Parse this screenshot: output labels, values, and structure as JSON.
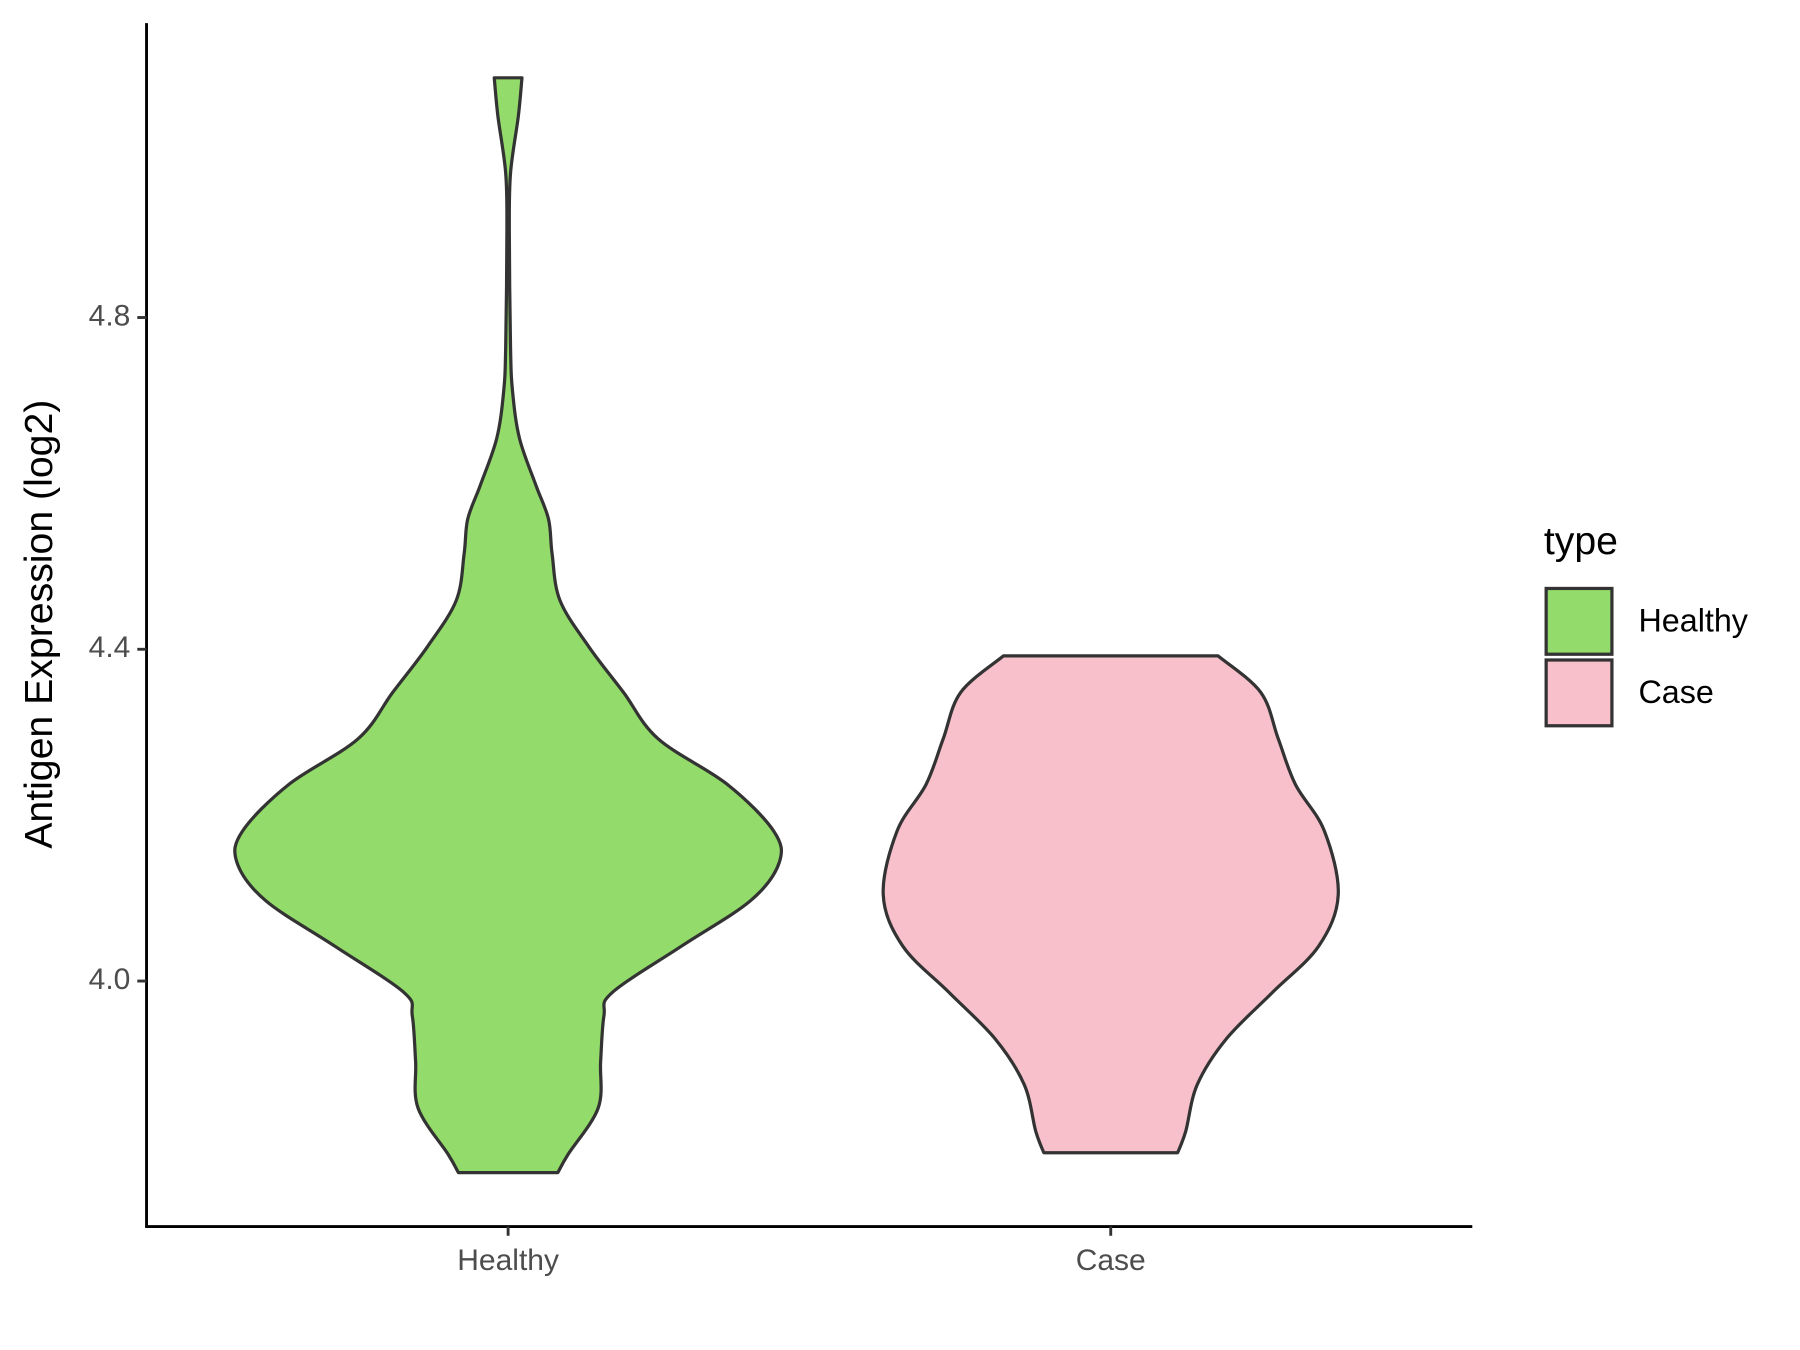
{
  "chart_data": {
    "type": "violin",
    "y_label": "Antigen Expression (log2)",
    "legend_title": "type",
    "categories": [
      "Healthy",
      "Case"
    ],
    "series": [
      {
        "name": "Healthy",
        "color": "#93DB6A",
        "y": [
          5.089,
          5.043,
          4.974,
          4.904,
          4.765,
          4.71,
          4.654,
          4.598,
          4.557,
          4.515,
          4.459,
          4.403,
          4.348,
          4.292,
          4.237,
          4.181,
          4.143,
          4.097,
          4.042,
          3.986,
          3.958,
          3.903,
          3.847,
          3.791,
          3.769
        ],
        "width": [
          0.046,
          0.034,
          0.008,
          0.004,
          0.008,
          0.015,
          0.038,
          0.092,
          0.134,
          0.146,
          0.172,
          0.268,
          0.383,
          0.498,
          0.728,
          0.881,
          0.9,
          0.805,
          0.575,
          0.345,
          0.318,
          0.307,
          0.299,
          0.199,
          0.165
        ]
      },
      {
        "name": "Case",
        "color": "#F7C0CB",
        "y": [
          4.392,
          4.348,
          4.292,
          4.237,
          4.181,
          4.104,
          4.042,
          3.986,
          3.93,
          3.875,
          3.819,
          3.793
        ],
        "width": [
          0.356,
          0.498,
          0.556,
          0.613,
          0.709,
          0.755,
          0.69,
          0.536,
          0.383,
          0.287,
          0.249,
          0.222
        ]
      }
    ],
    "ylim": [
      3.704,
      5.155
    ],
    "yticks": [
      {
        "value": 4,
        "label": "4.0"
      },
      4.4,
      4.8
    ],
    "legend": "right"
  }
}
